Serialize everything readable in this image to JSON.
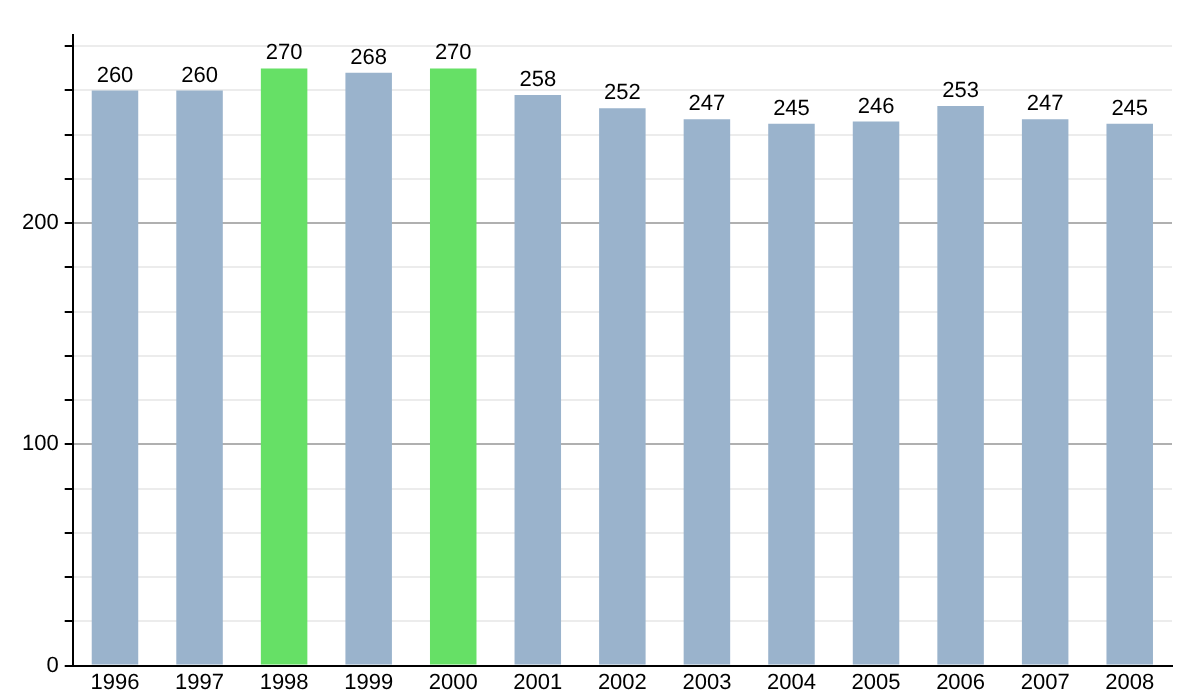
{
  "chart_data": {
    "type": "bar",
    "categories": [
      "1996",
      "1997",
      "1998",
      "1999",
      "2000",
      "2001",
      "2002",
      "2003",
      "2004",
      "2005",
      "2006",
      "2007",
      "2008"
    ],
    "values": [
      260,
      260,
      270,
      268,
      270,
      258,
      252,
      247,
      245,
      246,
      253,
      247,
      245
    ],
    "colors": [
      "#9ab3cc",
      "#9ab3cc",
      "#66e066",
      "#9ab3cc",
      "#66e066",
      "#9ab3cc",
      "#9ab3cc",
      "#9ab3cc",
      "#9ab3cc",
      "#9ab3cc",
      "#9ab3cc",
      "#9ab3cc",
      "#9ab3cc"
    ],
    "ylim": [
      0,
      285
    ],
    "yticks": [
      0,
      {
        "value": 20,
        "label": null
      },
      {
        "value": 40,
        "label": null
      },
      {
        "value": 60,
        "label": null
      },
      {
        "value": 80,
        "label": null
      },
      100,
      {
        "value": 120,
        "label": null
      },
      {
        "value": 140,
        "label": null
      },
      {
        "value": 160,
        "label": null
      },
      {
        "value": 180,
        "label": null
      },
      200,
      {
        "value": 220,
        "label": null
      },
      {
        "value": 240,
        "label": null
      },
      {
        "value": 260,
        "label": null
      },
      {
        "value": 280,
        "label": null
      }
    ],
    "grid": true,
    "data_labels": true
  }
}
